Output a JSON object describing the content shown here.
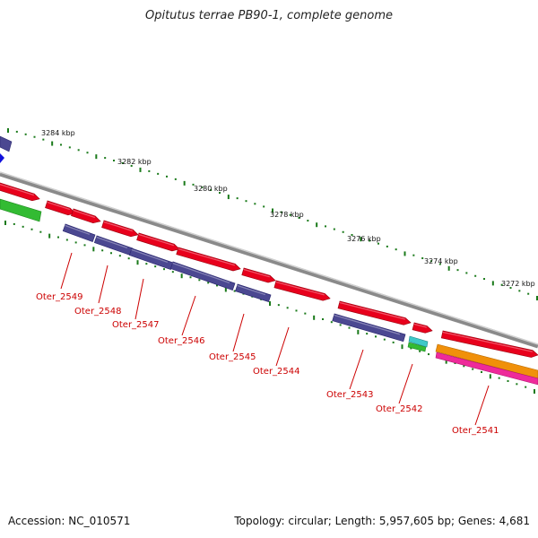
{
  "title": "Opitutus terrae PB90-1, complete genome",
  "accession": "Accession: NC_010571",
  "topology": "Topology: circular; Length: 5,957,605 bp; Genes: 4,681",
  "colors": {
    "forward_gene": "#e8001c",
    "reverse_gene": "#4b4891",
    "backbone": "#8a8a8a",
    "ticks": "#1a7a1a",
    "labels": "#cc0000",
    "green_feature": "#33bb33",
    "cyan_feature": "#3ec8c8",
    "orange_feature": "#f0900a",
    "magenta_feature": "#ee2a9a",
    "blue_marker": "#1010dd"
  },
  "kbp_labels": [
    "3284 kbp",
    "3282 kbp",
    "3280 kbp",
    "3278 kbp",
    "3276 kbp",
    "3274 kbp",
    "3272 kbp"
  ],
  "gene_labels": [
    "Oter_2549",
    "Oter_2548",
    "Oter_2547",
    "Oter_2546",
    "Oter_2545",
    "Oter_2544",
    "Oter_2543",
    "Oter_2542",
    "Oter_2541"
  ]
}
